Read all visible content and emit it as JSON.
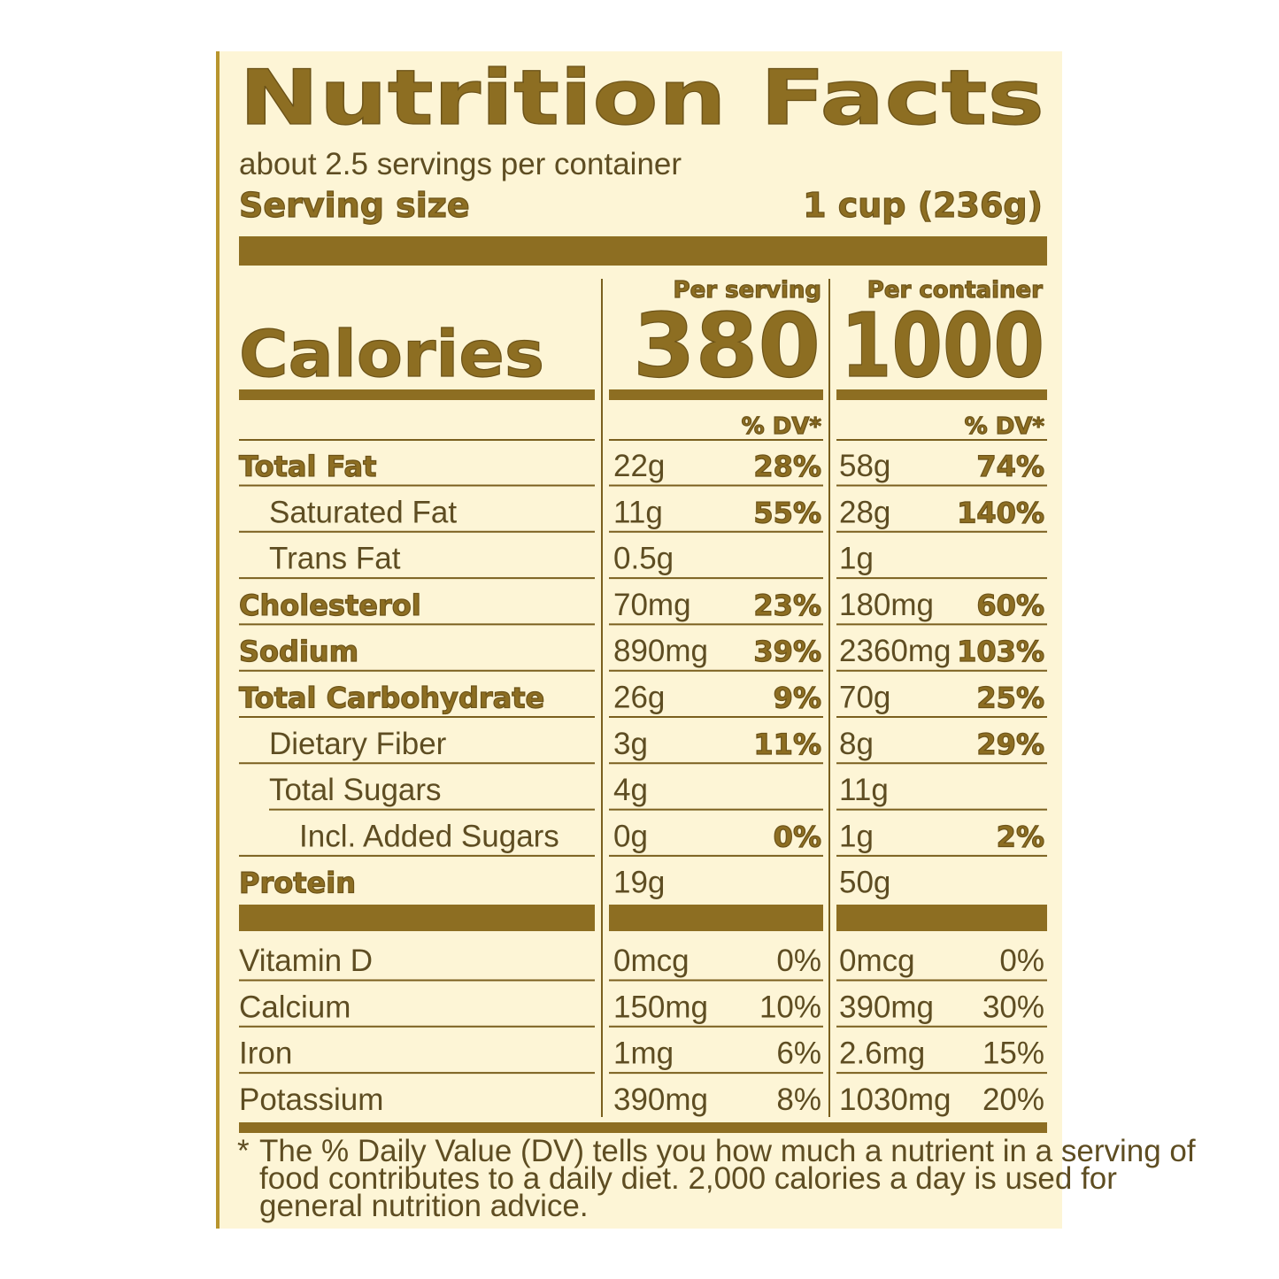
{
  "header": {
    "title": "Nutrition Facts",
    "servings": "about 2.5 servings per container",
    "serving_size_label": "Serving size",
    "serving_size_value": "1 cup (236g)"
  },
  "calories": {
    "label": "Calories",
    "per_serving_heading": "Per serving",
    "per_container_heading": "Per container",
    "per_serving": 380,
    "per_container": 1000
  },
  "dv_headings": [
    "% DV*",
    "% DV*"
  ],
  "nutrients": [
    {
      "name": "Total Fat",
      "bold": true,
      "indent": 0,
      "serving_amount": "22g",
      "serving_dv": "28%",
      "container_amount": "58g",
      "container_dv": "74%"
    },
    {
      "name": "Saturated Fat",
      "bold": false,
      "indent": 1,
      "serving_amount": "11g",
      "serving_dv": "55%",
      "container_amount": "28g",
      "container_dv": "140%"
    },
    {
      "name": "Trans Fat",
      "bold": false,
      "indent": 1,
      "serving_amount": "0.5g",
      "container_amount": "1g"
    },
    {
      "name": "Cholesterol",
      "bold": true,
      "indent": 0,
      "serving_amount": "70mg",
      "serving_dv": "23%",
      "container_amount": "180mg",
      "container_dv": "60%"
    },
    {
      "name": "Sodium",
      "bold": true,
      "indent": 0,
      "serving_amount": "890mg",
      "serving_dv": "39%",
      "container_amount": "2360mg",
      "container_dv": "103%"
    },
    {
      "name": "Total Carbohydrate",
      "bold": true,
      "indent": 0,
      "serving_amount": "26g",
      "serving_dv": "9%",
      "container_amount": "70g",
      "container_dv": "25%"
    },
    {
      "name": "Dietary Fiber",
      "bold": false,
      "indent": 1,
      "serving_amount": "3g",
      "serving_dv": "11%",
      "container_amount": "8g",
      "container_dv": "29%"
    },
    {
      "name": "Total Sugars",
      "bold": false,
      "indent": 1,
      "serving_amount": "4g",
      "container_amount": "11g"
    },
    {
      "name": "Incl. Added Sugars",
      "bold": false,
      "indent": 2,
      "serving_amount": "0g",
      "serving_dv": "0%",
      "container_amount": "1g",
      "container_dv": "2%"
    },
    {
      "name": "Protein",
      "bold": true,
      "indent": 0,
      "serving_amount": "19g",
      "container_amount": "50g"
    }
  ],
  "vitamins": [
    {
      "name": "Vitamin D",
      "serving_amount": "0mcg",
      "serving_dv": "0%",
      "container_amount": "0mcg",
      "container_dv": "0%"
    },
    {
      "name": "Calcium",
      "serving_amount": "150mg",
      "serving_dv": "10%",
      "container_amount": "390mg",
      "container_dv": "30%"
    },
    {
      "name": "Iron",
      "serving_amount": "1mg",
      "serving_dv": "6%",
      "container_amount": "2.6mg",
      "container_dv": "15%"
    },
    {
      "name": "Potassium",
      "serving_amount": "390mg",
      "serving_dv": "8%",
      "container_amount": "1030mg",
      "container_dv": "20%"
    }
  ],
  "footnote": {
    "marker": "*",
    "lines": [
      "The % Daily Value (DV) tells you how much a nutrient in a serving of",
      "food contributes to a daily diet. 2,000 calories a day is used for",
      "general nutrition advice."
    ]
  }
}
